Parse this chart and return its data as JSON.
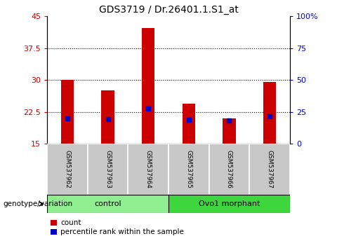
{
  "title": "GDS3719 / Dr.26401.1.S1_at",
  "samples": [
    "GSM537962",
    "GSM537963",
    "GSM537964",
    "GSM537965",
    "GSM537966",
    "GSM537967"
  ],
  "count_values": [
    30.1,
    27.6,
    42.2,
    24.5,
    21.0,
    29.6
  ],
  "percentile_values": [
    21.0,
    20.8,
    23.2,
    20.7,
    20.5,
    21.4
  ],
  "bar_bottom": 15,
  "ylim_left": [
    15,
    45
  ],
  "ylim_right": [
    0,
    100
  ],
  "yticks_left": [
    15,
    22.5,
    30,
    37.5,
    45
  ],
  "ytick_labels_left": [
    "15",
    "22.5",
    "30",
    "37.5",
    "45"
  ],
  "yticks_right": [
    0,
    25,
    50,
    75,
    100
  ],
  "ytick_labels_right": [
    "0",
    "25",
    "50",
    "75",
    "100%"
  ],
  "groups": [
    {
      "label": "control",
      "indices": [
        0,
        1,
        2
      ],
      "color": "#90EE90"
    },
    {
      "label": "Ovo1 morphant",
      "indices": [
        3,
        4,
        5
      ],
      "color": "#3DD63D"
    }
  ],
  "bar_color": "#CC0000",
  "marker_color": "#0000CC",
  "sample_bg_color": "#C8C8C8",
  "title_fontsize": 10,
  "tick_fontsize": 8,
  "bar_width": 0.32
}
